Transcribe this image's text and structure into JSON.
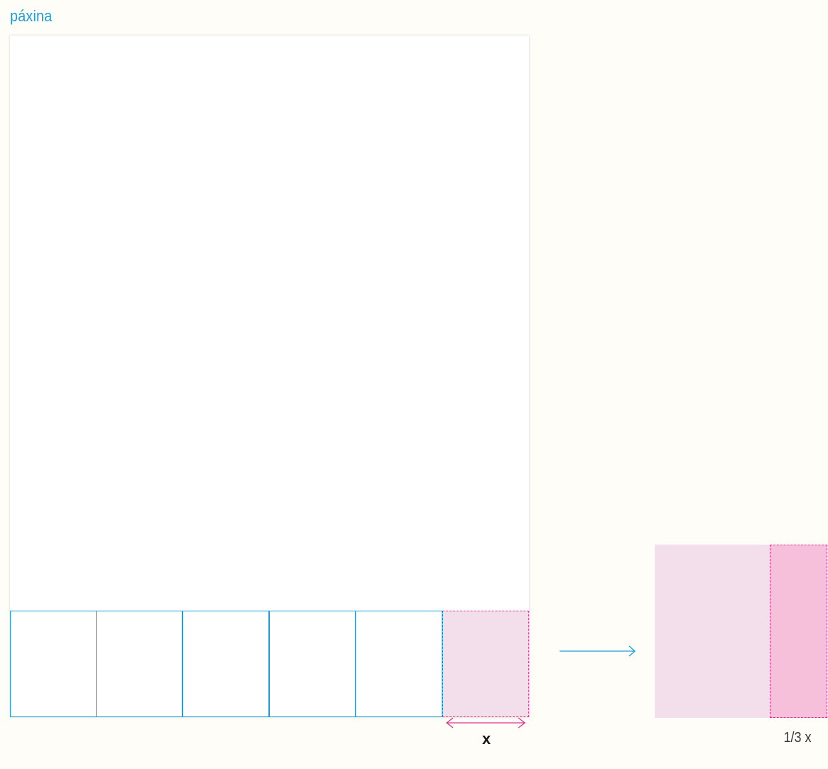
{
  "title": "páxina",
  "colors": {
    "accent_blue": "#1a9fd8",
    "accent_magenta": "#e0308c",
    "highlight_fill": "#f2dfeb",
    "strip_fill": "#f6bfda"
  },
  "grid": {
    "columns": 6,
    "highlighted_column": 6
  },
  "dimension_label": "x",
  "zoom": {
    "fraction_label": "1/3 x",
    "strip_fraction": 0.3333
  }
}
